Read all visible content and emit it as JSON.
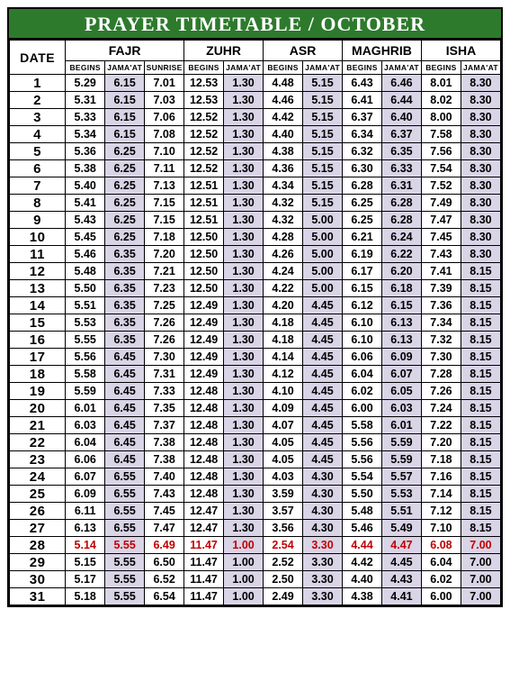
{
  "title": "PRAYER TIMETABLE / OCTOBER",
  "headers": {
    "date": "DATE",
    "groups": [
      "FAJR",
      "ZUHR",
      "ASR",
      "MAGHRIB",
      "ISHA"
    ],
    "sub_fajr": [
      "BEGINS",
      "JAMA'AT",
      "SUNRISE"
    ],
    "sub_pair": [
      "BEGINS",
      "JAMA'AT"
    ]
  },
  "highlight_row": 28,
  "shaded_cols": [
    1,
    4,
    6,
    8,
    10
  ],
  "rows": [
    {
      "d": "1",
      "c": [
        "5.29",
        "6.15",
        "7.01",
        "12.53",
        "1.30",
        "4.48",
        "5.15",
        "6.43",
        "6.46",
        "8.01",
        "8.30"
      ]
    },
    {
      "d": "2",
      "c": [
        "5.31",
        "6.15",
        "7.03",
        "12.53",
        "1.30",
        "4.46",
        "5.15",
        "6.41",
        "6.44",
        "8.02",
        "8.30"
      ]
    },
    {
      "d": "3",
      "c": [
        "5.33",
        "6.15",
        "7.06",
        "12.52",
        "1.30",
        "4.42",
        "5.15",
        "6.37",
        "6.40",
        "8.00",
        "8.30"
      ]
    },
    {
      "d": "4",
      "c": [
        "5.34",
        "6.15",
        "7.08",
        "12.52",
        "1.30",
        "4.40",
        "5.15",
        "6.34",
        "6.37",
        "7.58",
        "8.30"
      ]
    },
    {
      "d": "5",
      "c": [
        "5.36",
        "6.25",
        "7.10",
        "12.52",
        "1.30",
        "4.38",
        "5.15",
        "6.32",
        "6.35",
        "7.56",
        "8.30"
      ]
    },
    {
      "d": "6",
      "c": [
        "5.38",
        "6.25",
        "7.11",
        "12.52",
        "1.30",
        "4.36",
        "5.15",
        "6.30",
        "6.33",
        "7.54",
        "8.30"
      ]
    },
    {
      "d": "7",
      "c": [
        "5.40",
        "6.25",
        "7.13",
        "12.51",
        "1.30",
        "4.34",
        "5.15",
        "6.28",
        "6.31",
        "7.52",
        "8.30"
      ]
    },
    {
      "d": "8",
      "c": [
        "5.41",
        "6.25",
        "7.15",
        "12.51",
        "1.30",
        "4.32",
        "5.15",
        "6.25",
        "6.28",
        "7.49",
        "8.30"
      ]
    },
    {
      "d": "9",
      "c": [
        "5.43",
        "6.25",
        "7.15",
        "12.51",
        "1.30",
        "4.32",
        "5.00",
        "6.25",
        "6.28",
        "7.47",
        "8.30"
      ]
    },
    {
      "d": "10",
      "c": [
        "5.45",
        "6.25",
        "7.18",
        "12.50",
        "1.30",
        "4.28",
        "5.00",
        "6.21",
        "6.24",
        "7.45",
        "8.30"
      ]
    },
    {
      "d": "11",
      "c": [
        "5.46",
        "6.35",
        "7.20",
        "12.50",
        "1.30",
        "4.26",
        "5.00",
        "6.19",
        "6.22",
        "7.43",
        "8.30"
      ]
    },
    {
      "d": "12",
      "c": [
        "5.48",
        "6.35",
        "7.21",
        "12.50",
        "1.30",
        "4.24",
        "5.00",
        "6.17",
        "6.20",
        "7.41",
        "8.15"
      ]
    },
    {
      "d": "13",
      "c": [
        "5.50",
        "6.35",
        "7.23",
        "12.50",
        "1.30",
        "4.22",
        "5.00",
        "6.15",
        "6.18",
        "7.39",
        "8.15"
      ]
    },
    {
      "d": "14",
      "c": [
        "5.51",
        "6.35",
        "7.25",
        "12.49",
        "1.30",
        "4.20",
        "4.45",
        "6.12",
        "6.15",
        "7.36",
        "8.15"
      ]
    },
    {
      "d": "15",
      "c": [
        "5.53",
        "6.35",
        "7.26",
        "12.49",
        "1.30",
        "4.18",
        "4.45",
        "6.10",
        "6.13",
        "7.34",
        "8.15"
      ]
    },
    {
      "d": "16",
      "c": [
        "5.55",
        "6.35",
        "7.26",
        "12.49",
        "1.30",
        "4.18",
        "4.45",
        "6.10",
        "6.13",
        "7.32",
        "8.15"
      ]
    },
    {
      "d": "17",
      "c": [
        "5.56",
        "6.45",
        "7.30",
        "12.49",
        "1.30",
        "4.14",
        "4.45",
        "6.06",
        "6.09",
        "7.30",
        "8.15"
      ]
    },
    {
      "d": "18",
      "c": [
        "5.58",
        "6.45",
        "7.31",
        "12.49",
        "1.30",
        "4.12",
        "4.45",
        "6.04",
        "6.07",
        "7.28",
        "8.15"
      ]
    },
    {
      "d": "19",
      "c": [
        "5.59",
        "6.45",
        "7.33",
        "12.48",
        "1.30",
        "4.10",
        "4.45",
        "6.02",
        "6.05",
        "7.26",
        "8.15"
      ]
    },
    {
      "d": "20",
      "c": [
        "6.01",
        "6.45",
        "7.35",
        "12.48",
        "1.30",
        "4.09",
        "4.45",
        "6.00",
        "6.03",
        "7.24",
        "8.15"
      ]
    },
    {
      "d": "21",
      "c": [
        "6.03",
        "6.45",
        "7.37",
        "12.48",
        "1.30",
        "4.07",
        "4.45",
        "5.58",
        "6.01",
        "7.22",
        "8.15"
      ]
    },
    {
      "d": "22",
      "c": [
        "6.04",
        "6.45",
        "7.38",
        "12.48",
        "1.30",
        "4.05",
        "4.45",
        "5.56",
        "5.59",
        "7.20",
        "8.15"
      ]
    },
    {
      "d": "23",
      "c": [
        "6.06",
        "6.45",
        "7.38",
        "12.48",
        "1.30",
        "4.05",
        "4.45",
        "5.56",
        "5.59",
        "7.18",
        "8.15"
      ]
    },
    {
      "d": "24",
      "c": [
        "6.07",
        "6.55",
        "7.40",
        "12.48",
        "1.30",
        "4.03",
        "4.30",
        "5.54",
        "5.57",
        "7.16",
        "8.15"
      ]
    },
    {
      "d": "25",
      "c": [
        "6.09",
        "6.55",
        "7.43",
        "12.48",
        "1.30",
        "3.59",
        "4.30",
        "5.50",
        "5.53",
        "7.14",
        "8.15"
      ]
    },
    {
      "d": "26",
      "c": [
        "6.11",
        "6.55",
        "7.45",
        "12.47",
        "1.30",
        "3.57",
        "4.30",
        "5.48",
        "5.51",
        "7.12",
        "8.15"
      ]
    },
    {
      "d": "27",
      "c": [
        "6.13",
        "6.55",
        "7.47",
        "12.47",
        "1.30",
        "3.56",
        "4.30",
        "5.46",
        "5.49",
        "7.10",
        "8.15"
      ]
    },
    {
      "d": "28",
      "c": [
        "5.14",
        "5.55",
        "6.49",
        "11.47",
        "1.00",
        "2.54",
        "3.30",
        "4.44",
        "4.47",
        "6.08",
        "7.00"
      ]
    },
    {
      "d": "29",
      "c": [
        "5.15",
        "5.55",
        "6.50",
        "11.47",
        "1.00",
        "2.52",
        "3.30",
        "4.42",
        "4.45",
        "6.04",
        "7.00"
      ]
    },
    {
      "d": "30",
      "c": [
        "5.17",
        "5.55",
        "6.52",
        "11.47",
        "1.00",
        "2.50",
        "3.30",
        "4.40",
        "4.43",
        "6.02",
        "7.00"
      ]
    },
    {
      "d": "31",
      "c": [
        "5.18",
        "5.55",
        "6.54",
        "11.47",
        "1.00",
        "2.49",
        "3.30",
        "4.38",
        "4.41",
        "6.00",
        "7.00"
      ]
    }
  ]
}
